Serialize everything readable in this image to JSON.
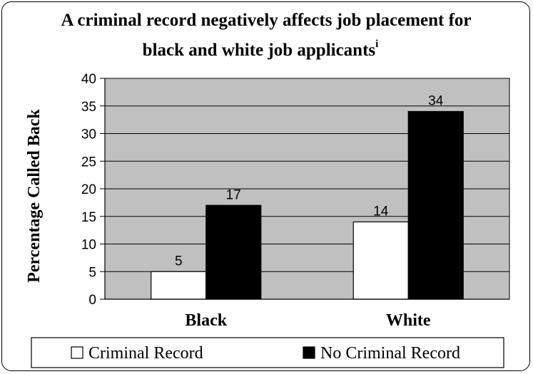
{
  "chart_data": {
    "type": "bar",
    "title": "A criminal record negatively affects job placement for",
    "title_line2": "black and white job applicants",
    "title_superscript": "i",
    "ylabel": "Percentage Called Back",
    "xlabel": "",
    "ylim": [
      0,
      40
    ],
    "ytick_step": 5,
    "grid": true,
    "categories": [
      "Black",
      "White"
    ],
    "series": [
      {
        "name": "Criminal Record",
        "values": [
          5,
          14
        ],
        "color": "#ffffff",
        "marker": "□"
      },
      {
        "name": "No Criminal Record",
        "values": [
          17,
          34
        ],
        "color": "#000000",
        "marker": "■"
      }
    ],
    "plot_background": "#c0c0c0",
    "legend_position": "bottom"
  }
}
